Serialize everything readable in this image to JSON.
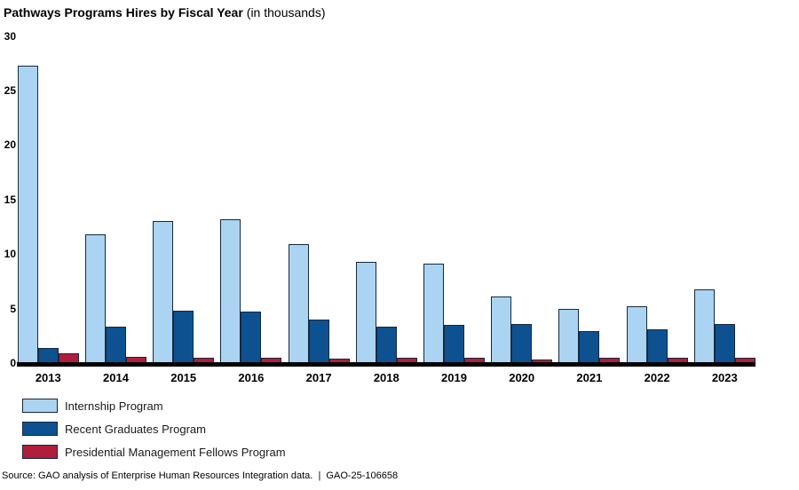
{
  "page": {
    "title_main": "Pathways Programs Hires by Fiscal Year",
    "title_suffix": "(in thousands)",
    "source": "Source: GAO analysis of Enterprise Human Resources Integration data.  |  GAO-25-106658"
  },
  "colors": {
    "internship_blue": "#aad4f2",
    "recent_graduates_blue": "#0e5191",
    "pmf_red": "#b01e3c",
    "bar_border": "#16293d",
    "axis_line": "#000000",
    "text": "#000000"
  },
  "chart_data": {
    "type": "bar",
    "title": "Pathways Programs Hires by Fiscal Year (in thousands)",
    "unit": "thousands",
    "categories": [
      "2013",
      "2014",
      "2015",
      "2016",
      "2017",
      "2018",
      "2019",
      "2020",
      "2021",
      "2022",
      "2023"
    ],
    "series": [
      {
        "name": "Internship Program",
        "color": "#aad4f2",
        "values": [
          27.3,
          11.8,
          13.0,
          13.2,
          10.9,
          9.3,
          9.1,
          6.1,
          5.0,
          5.2,
          6.8
        ]
      },
      {
        "name": "Recent Graduates Program",
        "color": "#0e5191",
        "values": [
          1.4,
          3.3,
          4.8,
          4.7,
          4.0,
          3.3,
          3.5,
          3.6,
          2.9,
          3.1,
          3.6
        ]
      },
      {
        "name": "Presidential Management Fellows Program",
        "color": "#b01e3c",
        "values": [
          0.9,
          0.6,
          0.5,
          0.5,
          0.4,
          0.45,
          0.45,
          0.35,
          0.45,
          0.5,
          0.5
        ]
      }
    ],
    "ylim": [
      0,
      30
    ],
    "yticks": [
      0,
      5,
      10,
      15,
      20,
      25,
      30
    ],
    "xlabel": "",
    "ylabel": "",
    "grid": false,
    "legend_position": "bottom-left"
  }
}
